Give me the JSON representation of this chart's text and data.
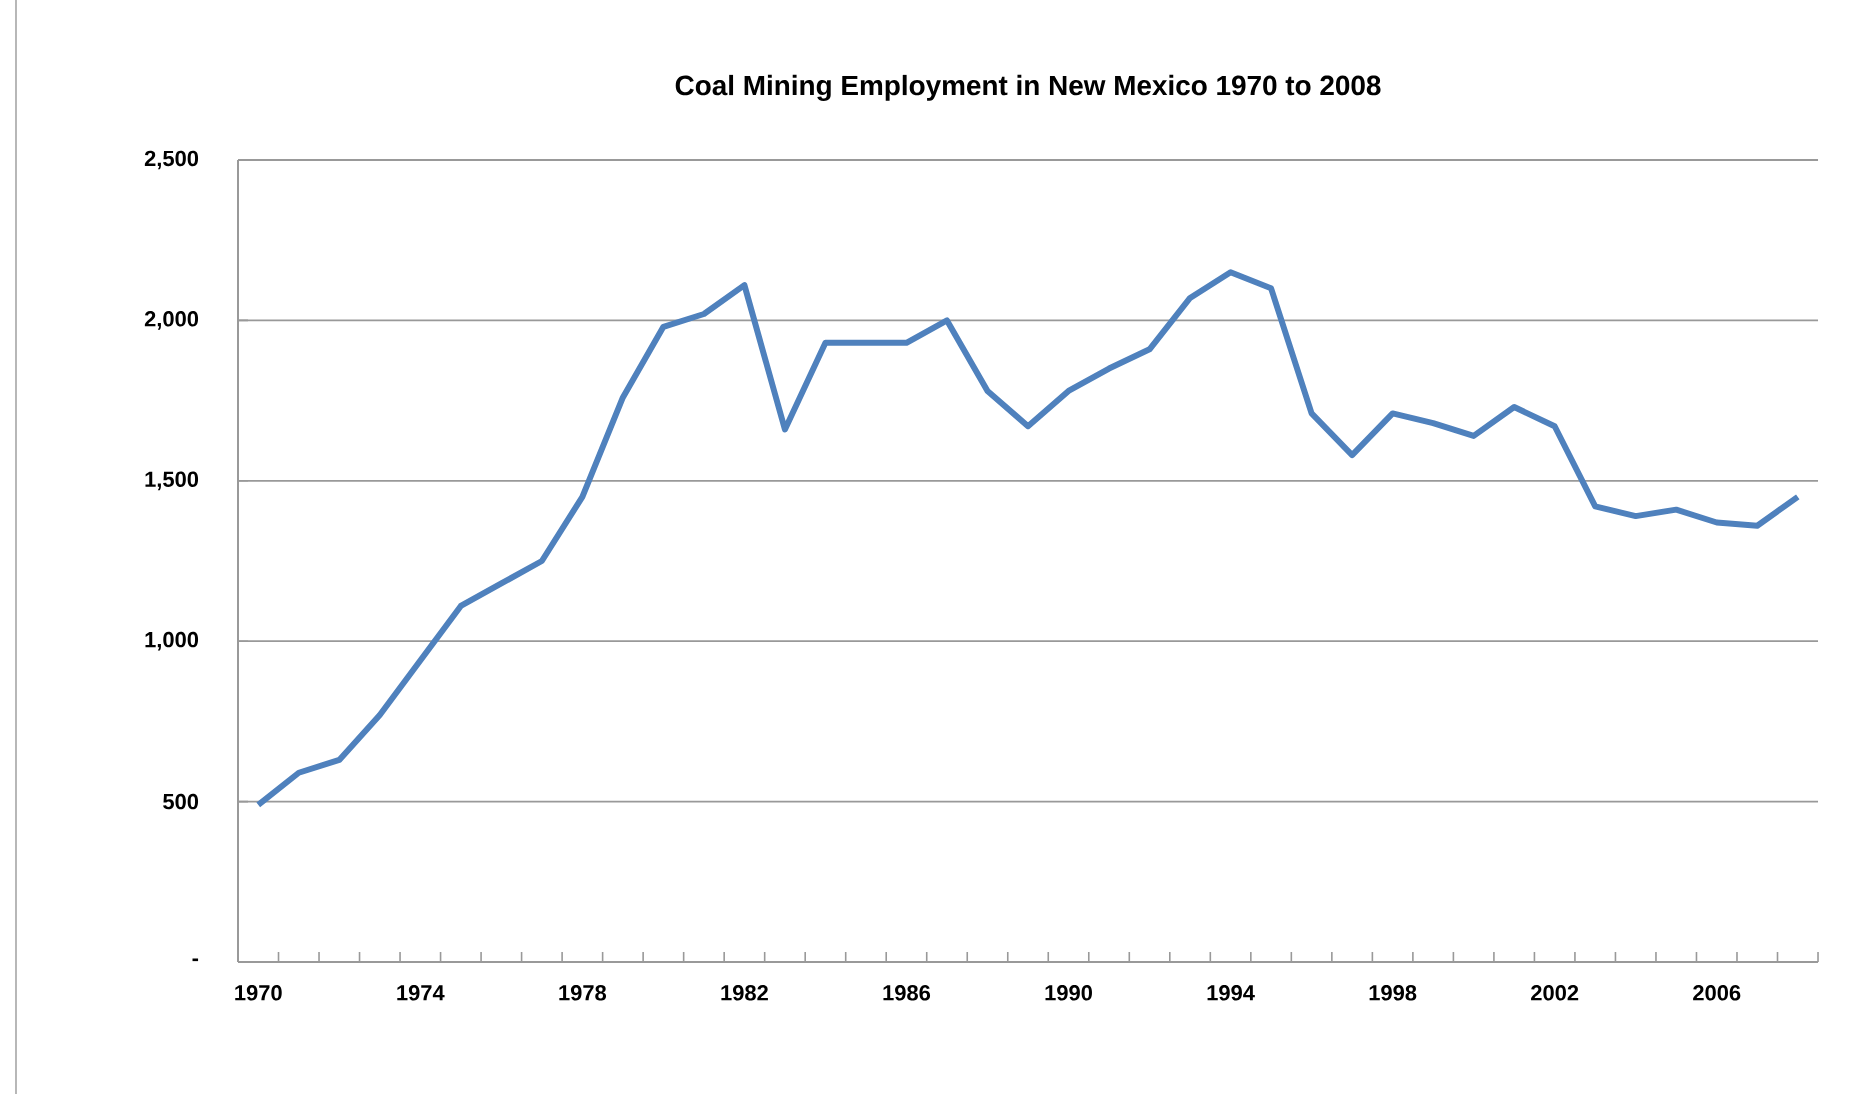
{
  "chart_data": {
    "type": "line",
    "title": "Coal Mining Employment in New Mexico  1970 to 2008",
    "categories": [
      "1970",
      null,
      null,
      null,
      "1974",
      null,
      null,
      null,
      "1978",
      null,
      null,
      null,
      "1982",
      null,
      null,
      null,
      "1986",
      null,
      null,
      null,
      "1990",
      null,
      null,
      null,
      "1994",
      null,
      null,
      null,
      "1998",
      null,
      null,
      null,
      "2002",
      null,
      null,
      null,
      "2006",
      null,
      null
    ],
    "series": [
      {
        "color": "#4f81bd",
        "values": [
          490,
          590,
          630,
          770,
          940,
          1110,
          1180,
          1250,
          1450,
          1760,
          1980,
          2020,
          2110,
          1660,
          1930,
          1930,
          1930,
          2000,
          1780,
          1670,
          1780,
          1850,
          1910,
          2070,
          2150,
          2100,
          1710,
          1580,
          1710,
          1680,
          1640,
          1730,
          1670,
          1420,
          1390,
          1410,
          1370,
          1360,
          1450
        ]
      }
    ],
    "ylim": [
      0,
      2500
    ],
    "yticks": [
      {
        "value": 0,
        "label": "-"
      },
      {
        "value": 500,
        "label": "500"
      },
      {
        "value": 1000,
        "label": "1,000"
      },
      {
        "value": 1500,
        "label": "1,500"
      },
      {
        "value": 2000,
        "label": "2,000"
      },
      {
        "value": 2500,
        "label": "2,500"
      }
    ],
    "grid": "y",
    "marker": "none",
    "line_style": "solid"
  }
}
